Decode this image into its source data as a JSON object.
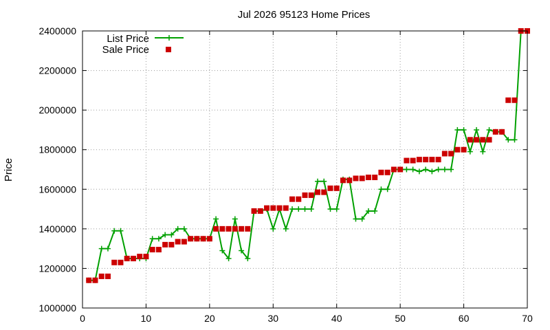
{
  "chart_data": {
    "type": "line",
    "title": "Jul 2026 95123 Home Prices",
    "xlabel": "",
    "ylabel": "Price",
    "xlim": [
      0,
      70
    ],
    "ylim": [
      1000000,
      2400000
    ],
    "xticks": [
      0,
      10,
      20,
      30,
      40,
      50,
      60,
      70
    ],
    "yticks": [
      1000000,
      1200000,
      1400000,
      1600000,
      1800000,
      2000000,
      2200000,
      2400000
    ],
    "grid": true,
    "legend_position": "top-left",
    "series": [
      {
        "name": "List Price",
        "style": "line-plus",
        "color": "#00a000",
        "x": [
          1,
          2,
          3,
          4,
          5,
          6,
          7,
          8,
          9,
          10,
          11,
          12,
          13,
          14,
          15,
          16,
          17,
          18,
          19,
          20,
          21,
          22,
          23,
          24,
          25,
          26,
          27,
          28,
          29,
          30,
          31,
          32,
          33,
          34,
          35,
          36,
          37,
          38,
          39,
          40,
          41,
          42,
          43,
          44,
          45,
          46,
          47,
          48,
          49,
          50,
          51,
          52,
          53,
          54,
          55,
          56,
          57,
          58,
          59,
          60,
          61,
          62,
          63,
          64,
          65,
          66,
          67,
          68,
          69,
          70
        ],
        "y": [
          1140000,
          1140000,
          1300000,
          1300000,
          1390000,
          1390000,
          1250000,
          1250000,
          1250000,
          1250000,
          1350000,
          1350000,
          1370000,
          1370000,
          1400000,
          1400000,
          1350000,
          1350000,
          1350000,
          1350000,
          1450000,
          1290000,
          1250000,
          1450000,
          1290000,
          1250000,
          1490000,
          1490000,
          1500000,
          1400000,
          1500000,
          1400000,
          1500000,
          1500000,
          1500000,
          1500000,
          1640000,
          1640000,
          1500000,
          1500000,
          1650000,
          1650000,
          1450000,
          1450000,
          1490000,
          1490000,
          1600000,
          1600000,
          1700000,
          1700000,
          1700000,
          1700000,
          1690000,
          1700000,
          1690000,
          1700000,
          1700000,
          1700000,
          1900000,
          1900000,
          1790000,
          1900000,
          1790000,
          1900000,
          1890000,
          1890000,
          1850000,
          1850000,
          2400000,
          2400000
        ]
      },
      {
        "name": "Sale Price",
        "style": "square",
        "color": "#cc0000",
        "x": [
          1,
          2,
          3,
          4,
          5,
          6,
          7,
          8,
          9,
          10,
          11,
          12,
          13,
          14,
          15,
          16,
          17,
          18,
          19,
          20,
          21,
          22,
          23,
          24,
          25,
          26,
          27,
          28,
          29,
          30,
          31,
          32,
          33,
          34,
          35,
          36,
          37,
          38,
          39,
          40,
          41,
          42,
          43,
          44,
          45,
          46,
          47,
          48,
          49,
          50,
          51,
          52,
          53,
          54,
          55,
          56,
          57,
          58,
          59,
          60,
          61,
          62,
          63,
          64,
          65,
          66,
          67,
          68,
          69,
          70
        ],
        "y": [
          1140000,
          1140000,
          1160000,
          1160000,
          1230000,
          1230000,
          1250000,
          1250000,
          1260000,
          1260000,
          1295000,
          1295000,
          1320000,
          1320000,
          1335000,
          1335000,
          1350000,
          1350000,
          1350000,
          1350000,
          1400000,
          1400000,
          1400000,
          1400000,
          1400000,
          1400000,
          1490000,
          1490000,
          1505000,
          1505000,
          1505000,
          1505000,
          1550000,
          1550000,
          1570000,
          1570000,
          1585000,
          1585000,
          1605000,
          1605000,
          1645000,
          1645000,
          1655000,
          1655000,
          1660000,
          1660000,
          1685000,
          1685000,
          1700000,
          1700000,
          1745000,
          1745000,
          1750000,
          1750000,
          1750000,
          1750000,
          1780000,
          1780000,
          1800000,
          1800000,
          1850000,
          1850000,
          1850000,
          1850000,
          1890000,
          1890000,
          2050000,
          2050000,
          2400000,
          2400000
        ]
      }
    ]
  }
}
